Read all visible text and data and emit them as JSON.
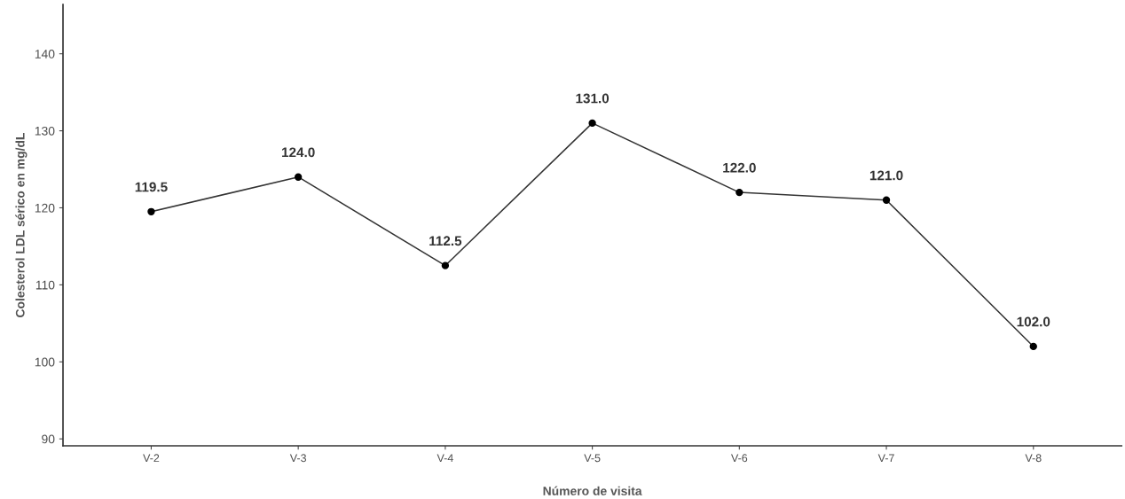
{
  "chart_data": {
    "type": "line",
    "xlabel": "Número de visita",
    "ylabel": "Colesterol LDL sérico en mg/dL",
    "categories": [
      "V-2",
      "V-3",
      "V-4",
      "V-5",
      "V-6",
      "V-7",
      "V-8"
    ],
    "series": [
      {
        "color": "#333333",
        "values": [
          119.5,
          124.0,
          112.5,
          131.0,
          122.0,
          121.0,
          102.0
        ]
      }
    ],
    "value_labels": [
      "119.5",
      "124.0",
      "112.5",
      "131.0",
      "122.0",
      "121.0",
      "102.0"
    ],
    "ylim": [
      89.1,
      146.4
    ],
    "yticks": [
      90,
      100,
      110,
      120,
      130,
      140
    ],
    "marker": "circle",
    "line_style": "solid",
    "grid": false,
    "legend": false
  }
}
